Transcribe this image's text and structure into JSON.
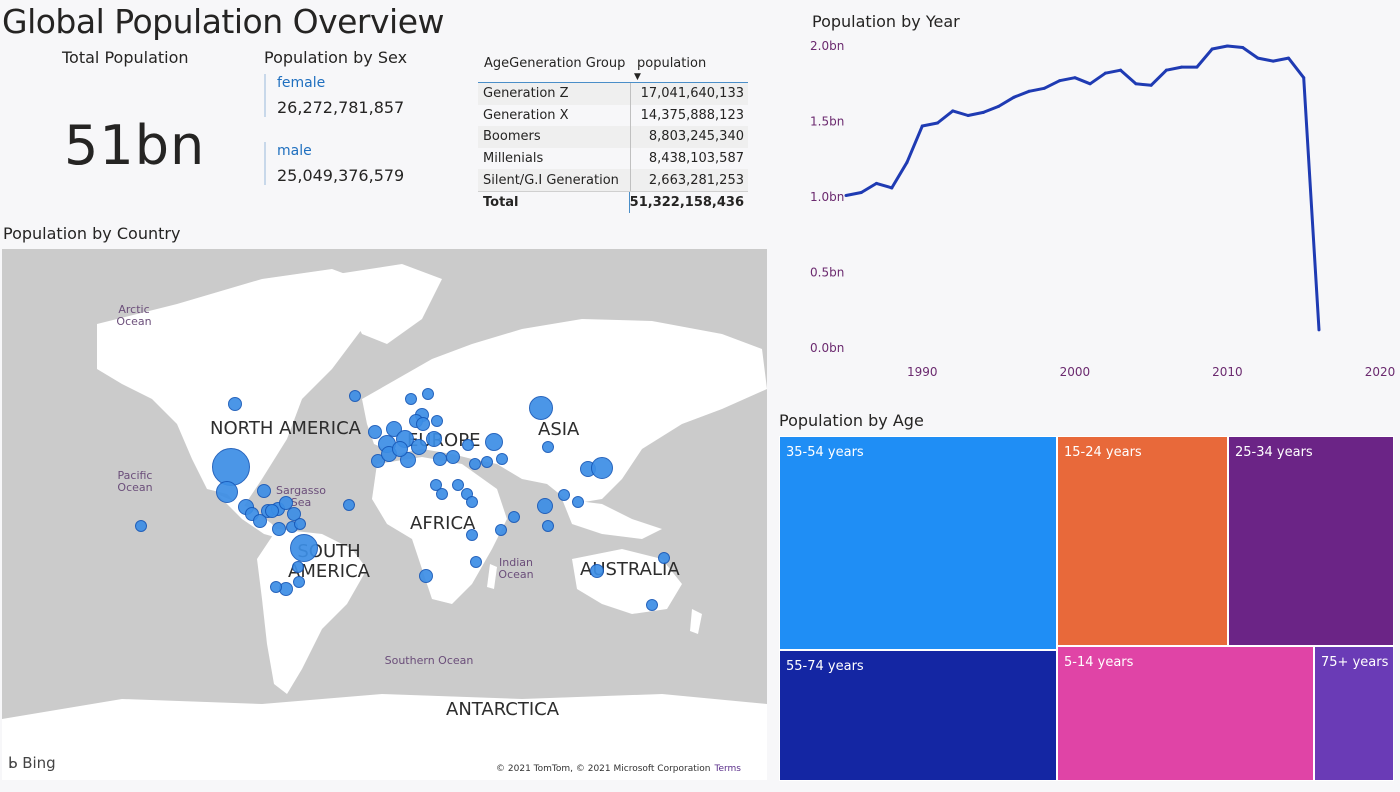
{
  "page": {
    "title": "Global Population Overview"
  },
  "total_card": {
    "label": "Total Population",
    "value": "51bn"
  },
  "sex_card": {
    "title": "Population by Sex",
    "female_label": "female",
    "female_value": "26,272,781,857",
    "male_label": "male",
    "male_value": "25,049,376,579"
  },
  "generation_table": {
    "col1": "AgeGeneration Group",
    "col2": "population",
    "rows": [
      {
        "group": "Generation Z",
        "population": "17,041,640,133"
      },
      {
        "group": "Generation X",
        "population": "14,375,888,123"
      },
      {
        "group": "Boomers",
        "population": "8,803,245,340"
      },
      {
        "group": "Millenials",
        "population": "8,438,103,587"
      },
      {
        "group": "Silent/G.I Generation",
        "population": "2,663,281,253"
      }
    ],
    "total_label": "Total",
    "total_value": "51,322,158,436"
  },
  "map": {
    "title": "Population by Country",
    "continents": [
      "NORTH AMERICA",
      "SOUTH AMERICA",
      "EUROPE",
      "ASIA",
      "AFRICA",
      "AUSTRALIA",
      "ANTARCTICA"
    ],
    "oceans": [
      "Arctic Ocean",
      "Pacific Ocean",
      "Sargasso Sea",
      "Indian Ocean",
      "Southern Ocean"
    ],
    "brand": "Bing",
    "copyright": "© 2021 TomTom, © 2021 Microsoft Corporation",
    "terms": "Terms",
    "bubble_color": "#3c8ee6"
  },
  "line_section": {
    "title": "Population by Year"
  },
  "chart_data": [
    {
      "type": "line",
      "title": "Population by Year",
      "x": [
        1985,
        1986,
        1987,
        1988,
        1989,
        1990,
        1991,
        1992,
        1993,
        1994,
        1995,
        1996,
        1997,
        1998,
        1999,
        2000,
        2001,
        2002,
        2003,
        2004,
        2005,
        2006,
        2007,
        2008,
        2009,
        2010,
        2011,
        2012,
        2013,
        2014,
        2015,
        2016
      ],
      "y": [
        1.01,
        1.03,
        1.09,
        1.06,
        1.23,
        1.47,
        1.49,
        1.57,
        1.54,
        1.56,
        1.6,
        1.66,
        1.7,
        1.72,
        1.77,
        1.79,
        1.75,
        1.82,
        1.84,
        1.75,
        1.74,
        1.84,
        1.86,
        1.86,
        1.98,
        2.0,
        1.99,
        1.92,
        1.9,
        1.92,
        1.79,
        0.12
      ],
      "yticks": [
        "0.0bn",
        "0.5bn",
        "1.0bn",
        "1.5bn",
        "2.0bn"
      ],
      "xticks": [
        "1990",
        "2000",
        "2010",
        "2020"
      ],
      "ylim": [
        0,
        2.0
      ],
      "xlim": [
        1985,
        2020
      ],
      "unit": "bn",
      "color": "#1f3bb3"
    },
    {
      "type": "treemap",
      "title": "Population by Age",
      "categories": [
        "35-54 years",
        "15-24 years",
        "25-34 years",
        "55-74 years",
        "5-14 years",
        "75+ years"
      ],
      "colors": [
        "#1f8ef5",
        "#e8693a",
        "#6b2486",
        "#1426a3",
        "#e044a6",
        "#6a3bb6"
      ]
    }
  ]
}
